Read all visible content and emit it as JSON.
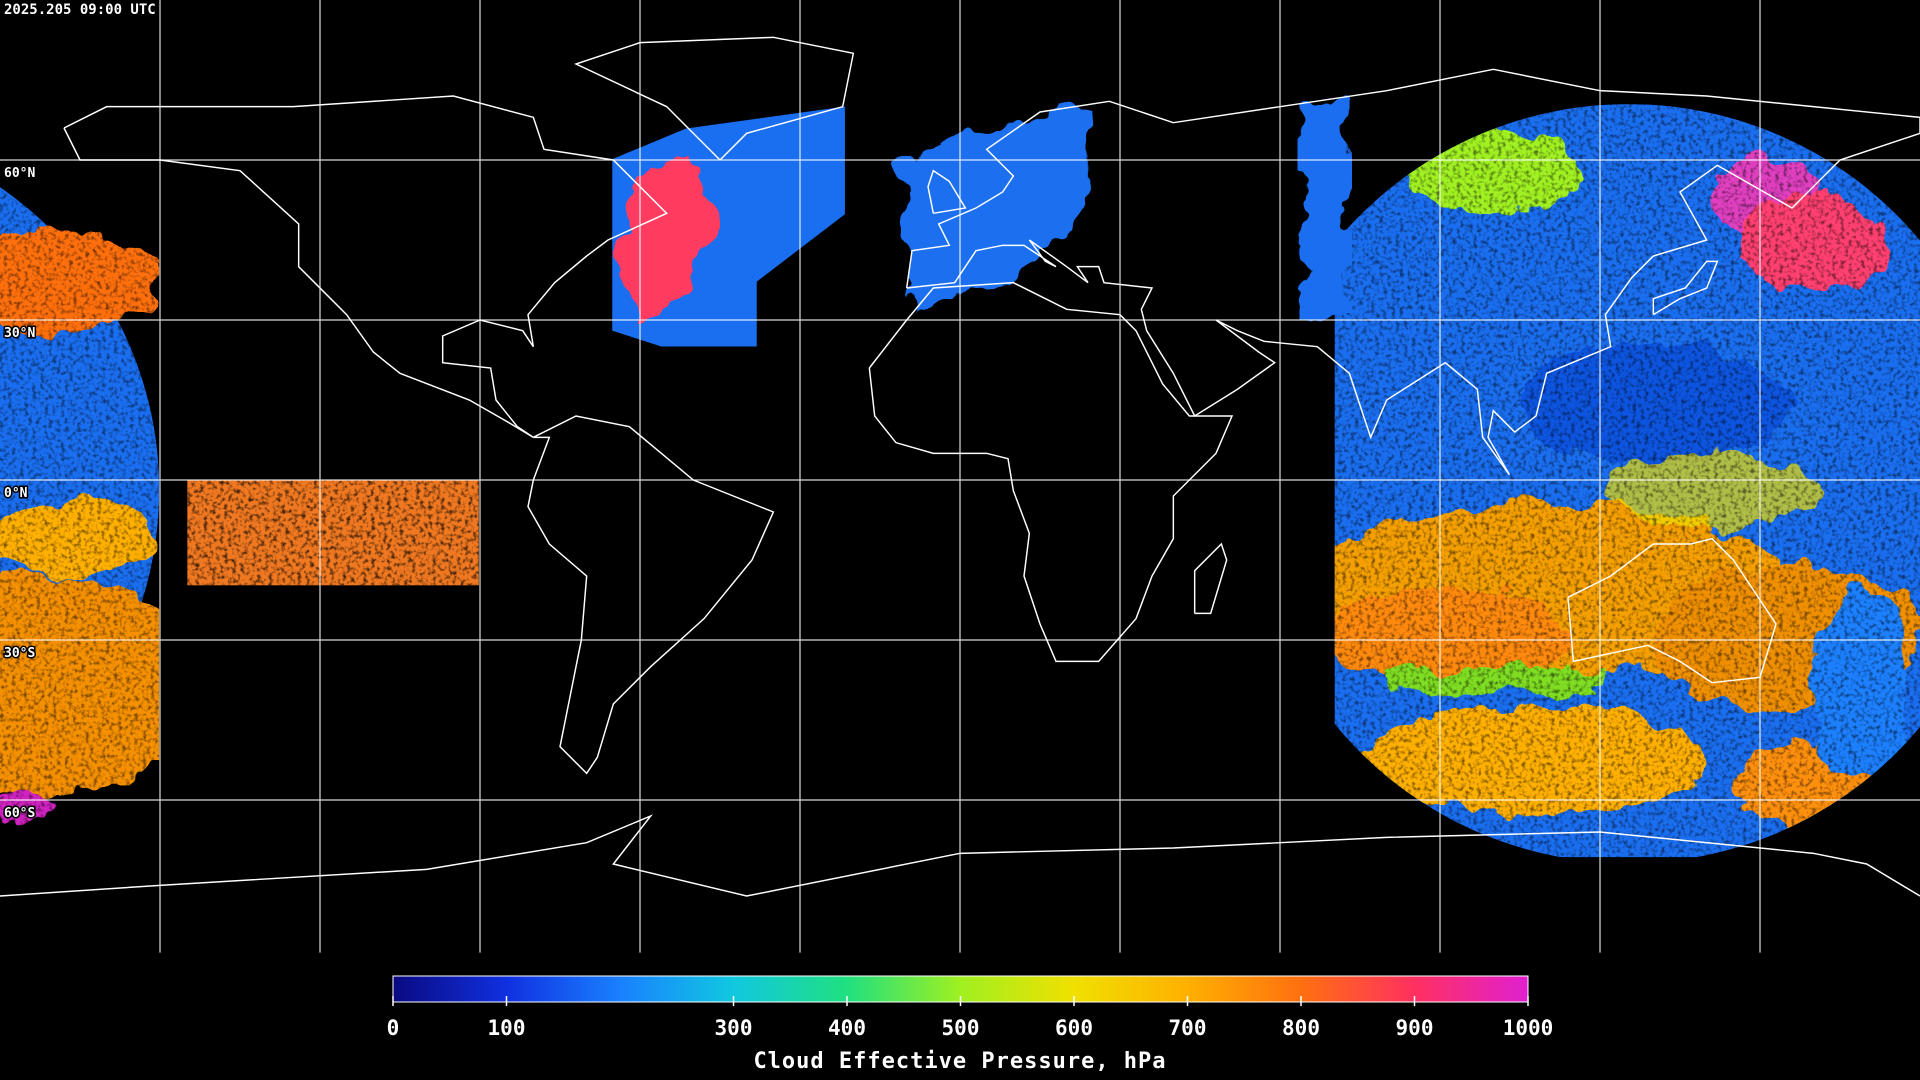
{
  "header": {
    "title": "2025.205 09:00 UTC"
  },
  "map": {
    "lat_labels": [
      "60°N",
      "30°N",
      "0°N",
      "30°S",
      "60°S"
    ]
  },
  "colorbar": {
    "label": "Cloud Effective Pressure, hPa",
    "range": [
      0,
      1000
    ],
    "ticks": [
      0,
      100,
      300,
      400,
      500,
      600,
      700,
      800,
      900,
      1000
    ],
    "colors": [
      "#0a0a80",
      "#1030e0",
      "#1a80ff",
      "#10c8e0",
      "#20e080",
      "#a0f020",
      "#f0e000",
      "#ffb000",
      "#ff7010",
      "#ff3060",
      "#e020d0"
    ]
  }
}
